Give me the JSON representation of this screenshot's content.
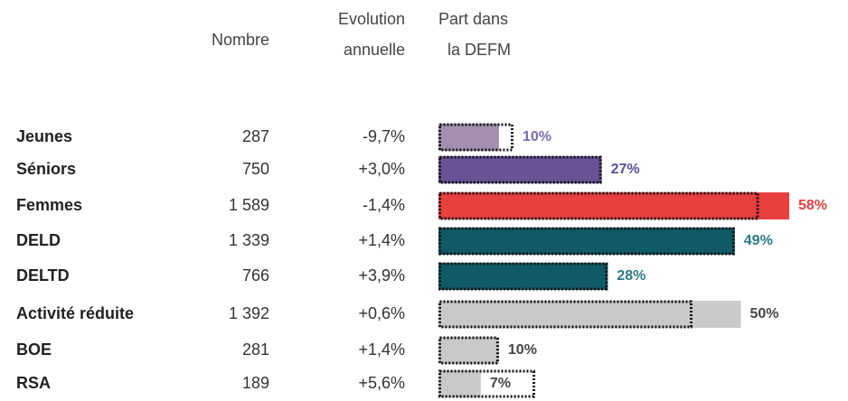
{
  "table": {
    "headers": [
      [
        "Nombre"
      ],
      [
        "Evolution",
        "annuelle"
      ],
      [
        "Part dans",
        "la DEFM"
      ]
    ],
    "rows": [
      {
        "label": "Jeunes",
        "nombre": "287",
        "evolution": "-9,7%"
      },
      {
        "label": "Séniors",
        "nombre": "750",
        "evolution": "+3,0%"
      },
      {
        "label": "Femmes",
        "nombre": "1 589",
        "evolution": "-1,4%"
      },
      {
        "label": "DELD",
        "nombre": "1 339",
        "evolution": "+1,4%"
      },
      {
        "label": "DELTD",
        "nombre": "766",
        "evolution": "+3,9%"
      },
      {
        "label": "Activité réduite",
        "nombre": "1 392",
        "evolution": "+0,6%"
      },
      {
        "label": "BOE",
        "nombre": "281",
        "evolution": "+1,4%"
      },
      {
        "label": "RSA",
        "nombre": "189",
        "evolution": "+5,6%"
      }
    ]
  },
  "chart_data": {
    "type": "bar",
    "orientation": "horizontal",
    "categories": [
      "Jeunes",
      "Séniors",
      "Femmes",
      "DELD",
      "DELTD",
      "Activité réduite",
      "BOE",
      "RSA"
    ],
    "values": [
      10,
      27,
      58,
      49,
      28,
      50,
      10,
      7
    ],
    "value_labels": [
      "10%",
      "27%",
      "58%",
      "49%",
      "28%",
      "50%",
      "10%",
      "7%"
    ],
    "outline_values": [
      12.4,
      27,
      53,
      49,
      28,
      42,
      10,
      16
    ],
    "colors": [
      "#a48fb0",
      "#6a5297",
      "#e8403f",
      "#0f5a66",
      "#0f5a66",
      "#c9c9c9",
      "#c9c9c9",
      "#c9c9c9"
    ],
    "label_colors": [
      "#7a6ab0",
      "#5a4d99",
      "#e8403f",
      "#2a7a85",
      "#2a7a85",
      "#444444",
      "#444444",
      "#444444"
    ],
    "xlim": [
      0,
      58
    ]
  }
}
